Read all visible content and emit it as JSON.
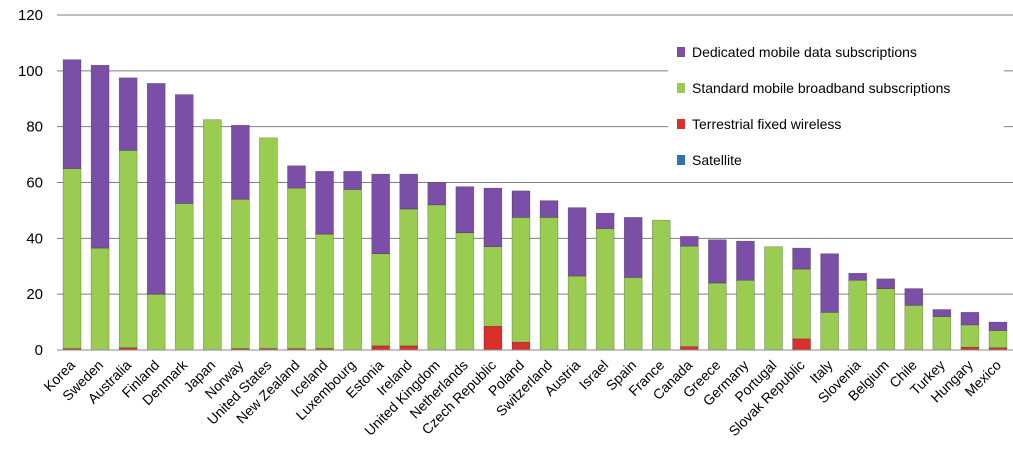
{
  "chart_data": {
    "type": "bar",
    "stacked": true,
    "categories": [
      "Korea",
      "Sweden",
      "Australia",
      "Finland",
      "Denmark",
      "Japan",
      "Norway",
      "United States",
      "New Zealand",
      "Iceland",
      "Luxembourg",
      "Estonia",
      "Ireland",
      "United Kingdom",
      "Netherlands",
      "Czech Republic",
      "Poland",
      "Switzerland",
      "Austria",
      "Israel",
      "Spain",
      "France",
      "Canada",
      "Greece",
      "Germany",
      "Portugal",
      "Slovak Republic",
      "Italy",
      "Slovenia",
      "Belgium",
      "Chile",
      "Turkey",
      "Hungary",
      "Mexico"
    ],
    "series": [
      {
        "name": "Satellite",
        "color": "#2e75b6",
        "values": [
          0,
          0,
          0,
          0,
          0,
          0,
          0,
          0,
          0,
          0,
          0,
          0,
          0,
          0,
          0,
          0,
          0,
          0,
          0,
          0,
          0,
          0,
          0,
          0,
          0,
          0,
          0,
          0,
          0,
          0,
          0,
          0,
          0,
          0
        ]
      },
      {
        "name": "Terrestrial fixed wireless",
        "color": "#d9302c",
        "values": [
          0.5,
          0,
          0.8,
          0,
          0,
          0,
          0.5,
          0.5,
          0.5,
          0.5,
          0,
          1.5,
          1.5,
          0,
          0,
          8.5,
          2.8,
          0,
          0,
          0,
          0,
          0,
          1.2,
          0,
          0,
          0,
          4,
          0,
          0,
          0,
          0,
          0,
          1,
          0.8
        ]
      },
      {
        "name": "Standard mobile broadband subscriptions",
        "color": "#9bcc52",
        "values": [
          64.5,
          36.5,
          70.7,
          20,
          52.5,
          82.5,
          53.5,
          75.5,
          57.5,
          41,
          57.5,
          33,
          49,
          52,
          42,
          28.5,
          44.7,
          47.5,
          26.5,
          43.5,
          26,
          46.5,
          36,
          24,
          25,
          37,
          25,
          13.5,
          25,
          22,
          16,
          12,
          8,
          6.2
        ]
      },
      {
        "name": "Dedicated mobile data subscriptions",
        "color": "#7b4fa8",
        "values": [
          39,
          65.5,
          26,
          75.5,
          39,
          0,
          26.5,
          0,
          8,
          22.5,
          6.5,
          28.5,
          12.5,
          8,
          16.5,
          21,
          9.5,
          6,
          24.5,
          5.5,
          21.5,
          0,
          3.5,
          15.5,
          14,
          0,
          7.5,
          21,
          2.5,
          3.5,
          6,
          2.5,
          4.5,
          3
        ]
      }
    ],
    "legend_order": [
      "Dedicated mobile data subscriptions",
      "Standard mobile broadband subscriptions",
      "Terrestrial fixed wireless",
      "Satellite"
    ],
    "y_ticks": [
      "0",
      "20",
      "40",
      "60",
      "80",
      "100",
      "120"
    ],
    "ylim": [
      0,
      120
    ],
    "grid": true,
    "legend_position": "top-right"
  }
}
